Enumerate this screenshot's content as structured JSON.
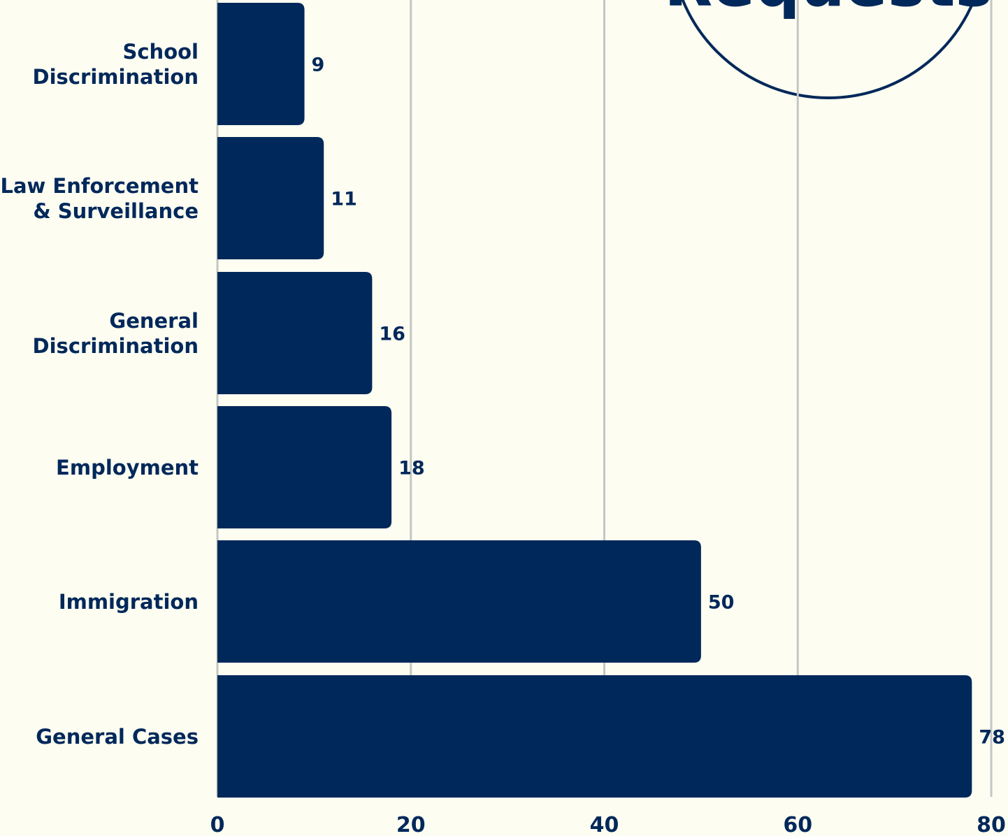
{
  "chart_data": {
    "type": "bar",
    "orientation": "horizontal",
    "categories": [
      [
        "School",
        "Discrimination"
      ],
      [
        "Law Enforcement",
        "& Surveillance"
      ],
      [
        "General",
        "Discrimination"
      ],
      [
        "Employment"
      ],
      [
        "Immigration"
      ],
      [
        "General Cases"
      ]
    ],
    "values": [
      9,
      11,
      16,
      18,
      50,
      78
    ],
    "xlim": [
      0,
      80
    ],
    "xticks": [
      0,
      20,
      40,
      60,
      80
    ],
    "grid": "vertical",
    "bar_color": "#00285a",
    "grid_color": "#c4c6c4",
    "background": "#fdfdf1",
    "decorations": {
      "circle_badge": {
        "partial_text": "Requests"
      }
    }
  }
}
